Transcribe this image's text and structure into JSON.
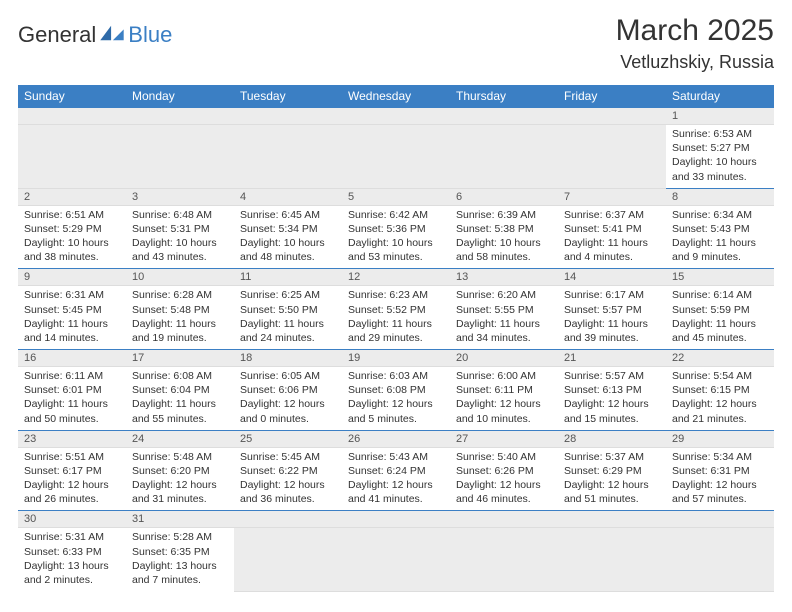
{
  "logo": {
    "text1": "General",
    "text2": "Blue"
  },
  "title": {
    "month": "March 2025",
    "location": "Vetluzhskiy, Russia"
  },
  "colors": {
    "header_bg": "#3b7fc4",
    "header_fg": "#ffffff",
    "daynum_bg": "#ececec",
    "text": "#333333"
  },
  "weekdays": [
    "Sunday",
    "Monday",
    "Tuesday",
    "Wednesday",
    "Thursday",
    "Friday",
    "Saturday"
  ],
  "first_weekday": 6,
  "days": [
    {
      "n": 1,
      "sr": "6:53 AM",
      "ss": "5:27 PM",
      "dl": "10 hours and 33 minutes."
    },
    {
      "n": 2,
      "sr": "6:51 AM",
      "ss": "5:29 PM",
      "dl": "10 hours and 38 minutes."
    },
    {
      "n": 3,
      "sr": "6:48 AM",
      "ss": "5:31 PM",
      "dl": "10 hours and 43 minutes."
    },
    {
      "n": 4,
      "sr": "6:45 AM",
      "ss": "5:34 PM",
      "dl": "10 hours and 48 minutes."
    },
    {
      "n": 5,
      "sr": "6:42 AM",
      "ss": "5:36 PM",
      "dl": "10 hours and 53 minutes."
    },
    {
      "n": 6,
      "sr": "6:39 AM",
      "ss": "5:38 PM",
      "dl": "10 hours and 58 minutes."
    },
    {
      "n": 7,
      "sr": "6:37 AM",
      "ss": "5:41 PM",
      "dl": "11 hours and 4 minutes."
    },
    {
      "n": 8,
      "sr": "6:34 AM",
      "ss": "5:43 PM",
      "dl": "11 hours and 9 minutes."
    },
    {
      "n": 9,
      "sr": "6:31 AM",
      "ss": "5:45 PM",
      "dl": "11 hours and 14 minutes."
    },
    {
      "n": 10,
      "sr": "6:28 AM",
      "ss": "5:48 PM",
      "dl": "11 hours and 19 minutes."
    },
    {
      "n": 11,
      "sr": "6:25 AM",
      "ss": "5:50 PM",
      "dl": "11 hours and 24 minutes."
    },
    {
      "n": 12,
      "sr": "6:23 AM",
      "ss": "5:52 PM",
      "dl": "11 hours and 29 minutes."
    },
    {
      "n": 13,
      "sr": "6:20 AM",
      "ss": "5:55 PM",
      "dl": "11 hours and 34 minutes."
    },
    {
      "n": 14,
      "sr": "6:17 AM",
      "ss": "5:57 PM",
      "dl": "11 hours and 39 minutes."
    },
    {
      "n": 15,
      "sr": "6:14 AM",
      "ss": "5:59 PM",
      "dl": "11 hours and 45 minutes."
    },
    {
      "n": 16,
      "sr": "6:11 AM",
      "ss": "6:01 PM",
      "dl": "11 hours and 50 minutes."
    },
    {
      "n": 17,
      "sr": "6:08 AM",
      "ss": "6:04 PM",
      "dl": "11 hours and 55 minutes."
    },
    {
      "n": 18,
      "sr": "6:05 AM",
      "ss": "6:06 PM",
      "dl": "12 hours and 0 minutes."
    },
    {
      "n": 19,
      "sr": "6:03 AM",
      "ss": "6:08 PM",
      "dl": "12 hours and 5 minutes."
    },
    {
      "n": 20,
      "sr": "6:00 AM",
      "ss": "6:11 PM",
      "dl": "12 hours and 10 minutes."
    },
    {
      "n": 21,
      "sr": "5:57 AM",
      "ss": "6:13 PM",
      "dl": "12 hours and 15 minutes."
    },
    {
      "n": 22,
      "sr": "5:54 AM",
      "ss": "6:15 PM",
      "dl": "12 hours and 21 minutes."
    },
    {
      "n": 23,
      "sr": "5:51 AM",
      "ss": "6:17 PM",
      "dl": "12 hours and 26 minutes."
    },
    {
      "n": 24,
      "sr": "5:48 AM",
      "ss": "6:20 PM",
      "dl": "12 hours and 31 minutes."
    },
    {
      "n": 25,
      "sr": "5:45 AM",
      "ss": "6:22 PM",
      "dl": "12 hours and 36 minutes."
    },
    {
      "n": 26,
      "sr": "5:43 AM",
      "ss": "6:24 PM",
      "dl": "12 hours and 41 minutes."
    },
    {
      "n": 27,
      "sr": "5:40 AM",
      "ss": "6:26 PM",
      "dl": "12 hours and 46 minutes."
    },
    {
      "n": 28,
      "sr": "5:37 AM",
      "ss": "6:29 PM",
      "dl": "12 hours and 51 minutes."
    },
    {
      "n": 29,
      "sr": "5:34 AM",
      "ss": "6:31 PM",
      "dl": "12 hours and 57 minutes."
    },
    {
      "n": 30,
      "sr": "5:31 AM",
      "ss": "6:33 PM",
      "dl": "13 hours and 2 minutes."
    },
    {
      "n": 31,
      "sr": "5:28 AM",
      "ss": "6:35 PM",
      "dl": "13 hours and 7 minutes."
    }
  ],
  "labels": {
    "sunrise": "Sunrise:",
    "sunset": "Sunset:",
    "daylight": "Daylight:"
  }
}
